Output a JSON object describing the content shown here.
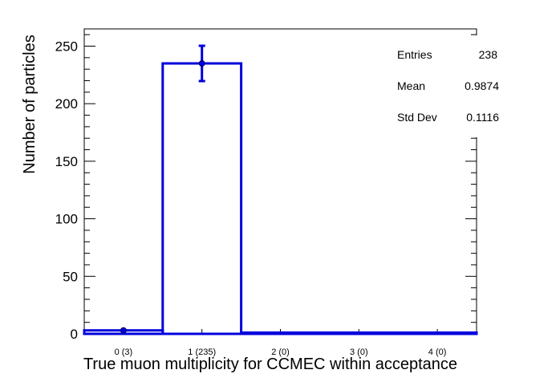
{
  "chart_data": {
    "type": "bar",
    "xlabel": "True muon multiplicity for CCMEC within acceptance",
    "ylabel": "Number of particles",
    "categories": [
      "0 (3)",
      "1 (235)",
      "2 (0)",
      "3 (0)",
      "4 (0)"
    ],
    "values": [
      3,
      235,
      0,
      0,
      0
    ],
    "errors": [
      1.73,
      15.33,
      0,
      0,
      0
    ],
    "ylim": [
      0,
      265
    ],
    "yticks": [
      "0",
      "50",
      "100",
      "150",
      "200",
      "250"
    ],
    "colors": {
      "line": "#0000dd",
      "axis": "#000000"
    },
    "grid": false,
    "stats": {
      "entries_label": "Entries",
      "entries_value": "238",
      "mean_label": "Mean",
      "mean_value": "0.9874",
      "std_label": "Std Dev",
      "std_value": "0.1116"
    }
  }
}
